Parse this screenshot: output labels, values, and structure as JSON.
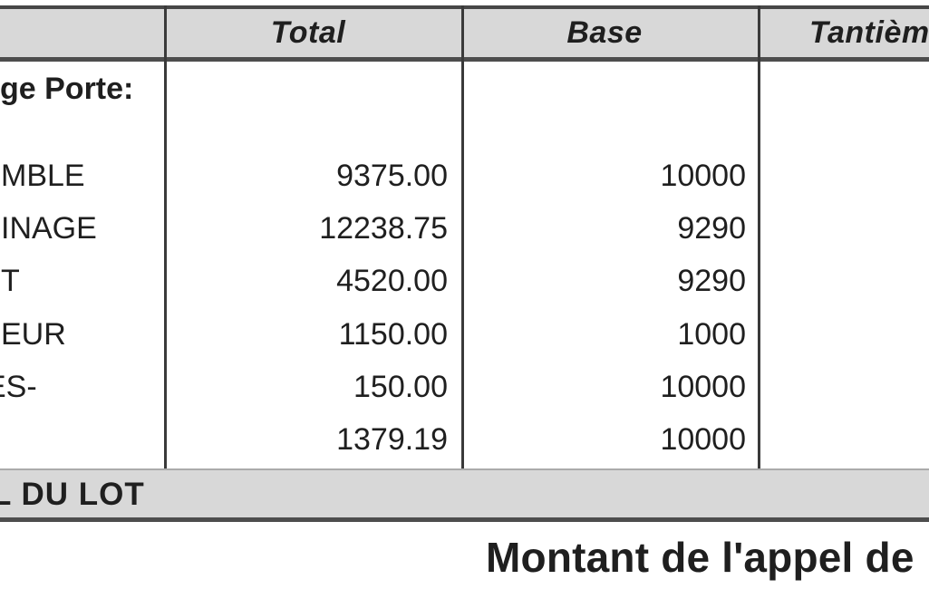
{
  "table": {
    "columns": {
      "total": "Total",
      "base": "Base",
      "tantiemes": "Tantièm"
    },
    "section_label": "ge Porte:",
    "rows": [
      {
        "label": "MBLE",
        "total": "9375.00",
        "base": "10000"
      },
      {
        "label": "INAGE",
        "total": "12238.75",
        "base": "9290"
      },
      {
        "label": "T",
        "total": "4520.00",
        "base": "9290"
      },
      {
        "label": "EUR",
        "total": "1150.00",
        "base": "1000"
      },
      {
        "label": "ES-",
        "total": "150.00",
        "base": "10000"
      },
      {
        "label": "",
        "total": "1379.19",
        "base": "10000"
      }
    ],
    "total_row_label": "L DU LOT"
  },
  "footer": {
    "caption": "Montant de l'appel de"
  },
  "colors": {
    "header_bg": "#d8d8d8",
    "border_dark": "#3a3a3a",
    "text": "#1f1f1f"
  }
}
